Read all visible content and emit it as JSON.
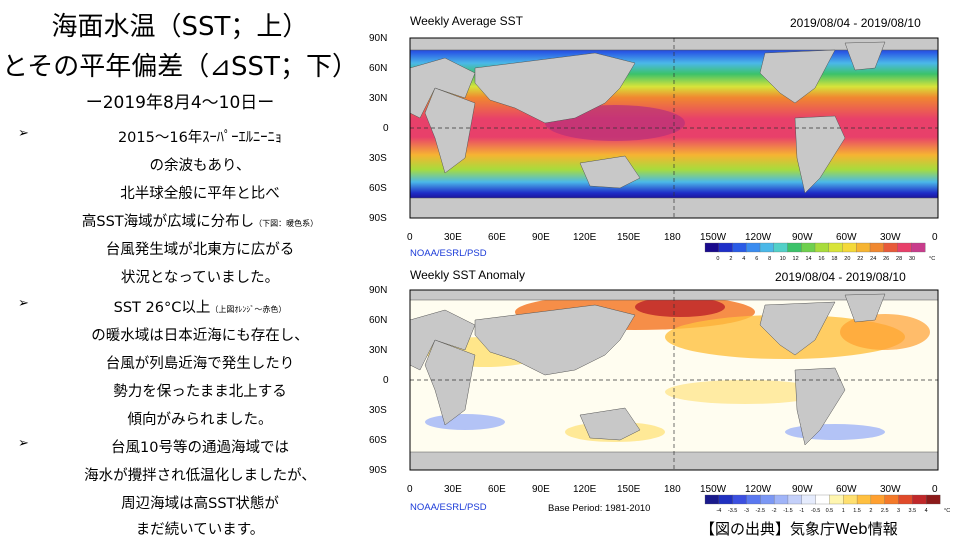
{
  "left": {
    "title_line1": "海面水温（SST；上）",
    "title_line2": "とその平年偏差（⊿SST；下）",
    "date_line": "ー2019年8月4〜10日ー",
    "bullet_symbol": "➢",
    "lines": [
      "2015〜16年ｽｰﾊﾟｰｴﾙﾆｰﾆｮ",
      "の余波もあり、",
      "北半球全般に平年と比べ",
      "高SST海域が広域に分布し",
      "台風発生域が北東方に広がる",
      "状況となっていました。",
      "SST 26°C以上",
      "の暖水域は日本近海にも存在し、",
      "台風が列島近海で発生したり",
      "勢力を保ったまま北上する",
      "傾向がみられました。",
      "台風10号等の通過海域では",
      "海水が攪拌され低温化しましたが、",
      "周辺海域は高SST状態が",
      "まだ続いています。"
    ],
    "note_below_warm": "（下図：暖色系）",
    "note_orange_red": "（上図ｵﾚﾝｼﾞ〜赤色）"
  },
  "top_map": {
    "title": "Weekly Average SST",
    "date_range": "2019/08/04 - 2019/08/10",
    "lat_labels": [
      "90N",
      "60N",
      "30N",
      "0",
      "30S",
      "60S",
      "90S"
    ],
    "lon_labels": [
      "0",
      "30E",
      "60E",
      "90E",
      "120E",
      "150E",
      "180",
      "150W",
      "120W",
      "90W",
      "60W",
      "30W",
      "0"
    ],
    "credit": "NOAA/ESRL/PSD",
    "colorbar_labels": [
      "0",
      "2",
      "4",
      "6",
      "8",
      "10",
      "12",
      "14",
      "16",
      "18",
      "20",
      "22",
      "24",
      "26",
      "28",
      "30"
    ],
    "colorbar_unit": "°C",
    "colorbar_colors": [
      "#1a0a8c",
      "#1f2fc8",
      "#2a5be6",
      "#3a8cf0",
      "#4bb8e8",
      "#52d0c8",
      "#3cc26a",
      "#6fd04e",
      "#a8dc3c",
      "#d8e43a",
      "#f4d93a",
      "#f6b432",
      "#f08830",
      "#e85a3a",
      "#e8406a",
      "#c83c8c"
    ]
  },
  "bottom_map": {
    "title": "Weekly SST Anomaly",
    "date_range": "2019/08/04 - 2019/08/10",
    "lat_labels": [
      "90N",
      "60N",
      "30N",
      "0",
      "30S",
      "60S",
      "90S"
    ],
    "lon_labels": [
      "0",
      "30E",
      "60E",
      "90E",
      "120E",
      "150E",
      "180",
      "150W",
      "120W",
      "90W",
      "60W",
      "30W",
      "0"
    ],
    "credit": "NOAA/ESRL/PSD",
    "base_period": "Base Period: 1981-2010",
    "colorbar_labels": [
      "-4",
      "-3.5",
      "-3",
      "-2.5",
      "-2",
      "-1.5",
      "-1",
      "-0.5",
      "0.5",
      "1",
      "1.5",
      "2",
      "2.5",
      "3",
      "3.5",
      "4"
    ],
    "colorbar_unit": "°C",
    "colorbar_colors": [
      "#1a1a8c",
      "#2030c0",
      "#3c50e0",
      "#5a78f0",
      "#7c98f4",
      "#a0b4f8",
      "#c4d0fa",
      "#e6ecfd",
      "#ffffff",
      "#fff6b0",
      "#ffe070",
      "#ffc040",
      "#ffa030",
      "#f47a2a",
      "#e04a2a",
      "#c0282a",
      "#8c1a1a"
    ]
  },
  "source": "【図の出典】気象庁Web情報"
}
